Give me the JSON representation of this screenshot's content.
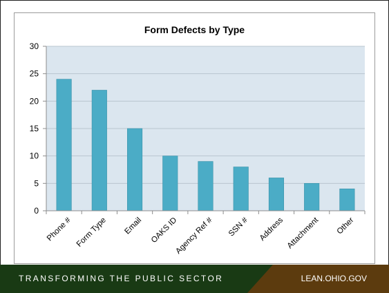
{
  "chart_data": {
    "type": "bar",
    "title": "Form Defects by Type",
    "categories": [
      "Phone #",
      "Form Type",
      "Email",
      "OAKS ID",
      "Agency Ref #",
      "SSN #",
      "Address",
      "Attachment",
      "Other"
    ],
    "values": [
      24,
      22,
      15,
      10,
      9,
      8,
      6,
      5,
      4
    ],
    "ylim": [
      0,
      30
    ],
    "yticks": [
      0,
      5,
      10,
      15,
      20,
      25,
      30
    ],
    "xlabel": "",
    "ylabel": "",
    "grid": true,
    "colors": {
      "bar": "#4bacc6",
      "bar_edge": "#3d93aa",
      "plot_bg": "#dbe6ef",
      "grid": "#b9c5cf",
      "axis": "#8c8c8c"
    }
  },
  "footer": {
    "left_text": "TRANSFORMING THE PUBLIC SECTOR",
    "right_text": "LEAN.OHIO.GOV",
    "colors": {
      "left_bg": "#193a14",
      "right_bg": "#5c3b0e"
    }
  }
}
